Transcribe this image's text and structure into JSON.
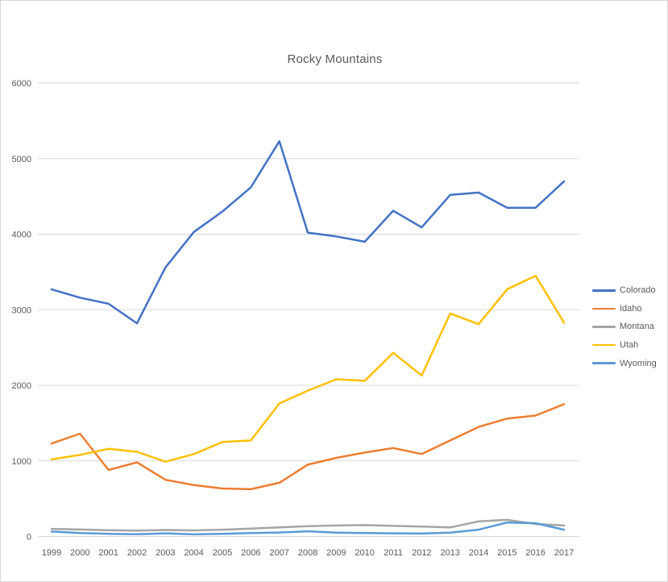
{
  "chart_data": {
    "type": "line",
    "title": "Rocky Mountains",
    "x": [
      1999,
      2000,
      2001,
      2002,
      2003,
      2004,
      2005,
      2006,
      2007,
      2008,
      2009,
      2010,
      2011,
      2012,
      2013,
      2014,
      2015,
      2016,
      2017
    ],
    "series": [
      {
        "name": "Colorado",
        "color": "#4472C4",
        "values": [
          3270,
          3160,
          3080,
          2820,
          3560,
          4030,
          4300,
          4620,
          5230,
          4020,
          3970,
          3900,
          4310,
          4090,
          4520,
          4550,
          4350,
          4350,
          4700
        ]
      },
      {
        "name": "Idaho",
        "color": "#ED7D31",
        "values": [
          1230,
          1360,
          880,
          980,
          750,
          680,
          635,
          625,
          710,
          950,
          1040,
          1110,
          1170,
          1090,
          1270,
          1450,
          1560,
          1600,
          1750
        ]
      },
      {
        "name": "Montana",
        "color": "#A5A5A5",
        "values": [
          100,
          92,
          82,
          78,
          85,
          80,
          90,
          105,
          120,
          135,
          145,
          150,
          140,
          130,
          120,
          200,
          220,
          165,
          145
        ]
      },
      {
        "name": "Utah",
        "color": "#FFC000",
        "values": [
          1020,
          1080,
          1160,
          1120,
          990,
          1090,
          1250,
          1270,
          1760,
          1930,
          2080,
          2060,
          2430,
          2130,
          2950,
          2810,
          3270,
          3450,
          2830
        ]
      },
      {
        "name": "Wyoming",
        "color": "#5B9BD5",
        "values": [
          65,
          45,
          35,
          30,
          42,
          28,
          35,
          45,
          52,
          68,
          50,
          46,
          42,
          38,
          50,
          90,
          185,
          175,
          90
        ]
      }
    ],
    "ylim": [
      0,
      6000
    ],
    "yticks": [
      0,
      1000,
      2000,
      3000,
      4000,
      5000,
      6000
    ],
    "grid": true,
    "legend_position": "right",
    "xlabel": "",
    "ylabel": "",
    "colors": {
      "text": "#595959",
      "gridline": "#D9D9D9",
      "background": "#FFFFFF",
      "frame_border": "#D9D9D9"
    }
  }
}
